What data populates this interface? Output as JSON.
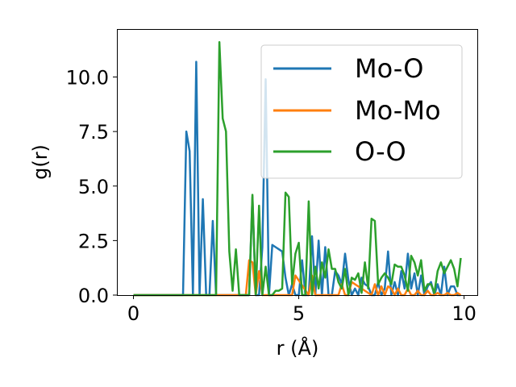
{
  "chart_data": {
    "type": "line",
    "title": "",
    "xlabel": "r (Å)",
    "ylabel": "g(r)",
    "xlim": [
      -0.5,
      10.4
    ],
    "ylim": [
      0,
      12.2
    ],
    "x_ticks": [
      0,
      5,
      10
    ],
    "x_tick_labels": [
      "0",
      "5",
      "10"
    ],
    "y_ticks": [
      0,
      2.5,
      5,
      7.5,
      10
    ],
    "y_tick_labels": [
      "0.0",
      "2.5",
      "5.0",
      "7.5",
      "10.0"
    ],
    "grid": false,
    "legend_position": "top-right",
    "series": [
      {
        "name": "Mo-O",
        "color": "#1f77b4",
        "x": [
          0,
          1.5,
          1.6,
          1.7,
          1.8,
          1.9,
          2.0,
          2.1,
          2.2,
          2.3,
          2.4,
          2.5,
          2.6,
          3.0,
          3.5,
          3.6,
          3.7,
          3.8,
          3.9,
          4.0,
          4.1,
          4.2,
          4.3,
          4.4,
          4.5,
          4.6,
          4.7,
          4.8,
          4.9,
          5.0,
          5.1,
          5.2,
          5.3,
          5.4,
          5.5,
          5.6,
          5.7,
          5.8,
          5.9,
          6.0,
          6.1,
          6.2,
          6.3,
          6.4,
          6.5,
          6.6,
          6.7,
          6.8,
          6.9,
          7.0,
          7.1,
          7.2,
          7.3,
          7.4,
          7.5,
          7.6,
          7.7,
          7.8,
          7.9,
          8.0,
          8.1,
          8.2,
          8.3,
          8.4,
          8.5,
          8.6,
          8.7,
          8.8,
          8.9,
          9.0,
          9.1,
          9.2,
          9.3,
          9.4,
          9.5,
          9.6,
          9.7,
          9.8,
          9.9
        ],
        "values": [
          0,
          0,
          7.5,
          6.6,
          0,
          10.7,
          0,
          4.4,
          0,
          0,
          3.4,
          0,
          0,
          0,
          0,
          4.5,
          0,
          0,
          2.2,
          9.9,
          0,
          2.3,
          2.2,
          2.1,
          2.0,
          0.8,
          0,
          0.5,
          0,
          0,
          1.6,
          0,
          0,
          2.7,
          0,
          2.5,
          0,
          2.2,
          0,
          0,
          1.1,
          0.9,
          0.5,
          1.9,
          0.7,
          0,
          0.3,
          0,
          0.8,
          0.5,
          0.4,
          0,
          0,
          0.6,
          0,
          0.3,
          2.0,
          0,
          0.6,
          0,
          1.1,
          0.3,
          1.9,
          0.3,
          1.0,
          0,
          0.9,
          0,
          0.4,
          0.6,
          0,
          0.5,
          0,
          1.3,
          0,
          0.4,
          0.4,
          0,
          0
        ]
      },
      {
        "name": "Mo-Mo",
        "color": "#ff7f0e",
        "x": [
          0,
          3.4,
          3.5,
          3.6,
          3.7,
          3.8,
          3.9,
          4.0,
          4.8,
          4.9,
          5.3,
          5.4,
          5.5,
          6.2,
          6.3,
          6.4,
          6.5,
          6.6,
          7.2,
          7.3,
          7.4,
          7.5,
          7.6,
          7.7,
          7.8,
          7.9,
          8.0,
          8.1,
          8.2,
          8.3,
          8.4,
          8.5,
          8.6,
          8.7,
          8.8,
          8.9,
          9.0,
          9.1,
          9.2,
          9.3,
          9.4,
          9.5,
          9.6,
          9.7,
          9.8,
          9.9
        ],
        "values": [
          0,
          0,
          1.6,
          1.5,
          0,
          1.1,
          0,
          0,
          0,
          0.9,
          0,
          0.9,
          0,
          0,
          0.5,
          0,
          0,
          0.6,
          0,
          0.5,
          0,
          0.4,
          0,
          0.4,
          0.3,
          0,
          0.3,
          0,
          0,
          0.3,
          0,
          0,
          0.2,
          0,
          0,
          0.2,
          0,
          0,
          0.1,
          0,
          0,
          0.1,
          0,
          0,
          0.1,
          0
        ]
      },
      {
        "name": "O-O",
        "color": "#2ca02c",
        "x": [
          0,
          2.4,
          2.5,
          2.6,
          2.7,
          2.8,
          2.9,
          3.0,
          3.1,
          3.2,
          3.3,
          3.4,
          3.5,
          3.6,
          3.7,
          3.8,
          3.9,
          4.0,
          4.1,
          4.2,
          4.3,
          4.4,
          4.5,
          4.6,
          4.7,
          4.8,
          4.9,
          5.0,
          5.1,
          5.2,
          5.3,
          5.4,
          5.5,
          5.6,
          5.7,
          5.8,
          5.9,
          6.0,
          6.1,
          6.2,
          6.3,
          6.4,
          6.5,
          6.6,
          6.7,
          6.8,
          6.9,
          7.0,
          7.1,
          7.2,
          7.3,
          7.4,
          7.5,
          7.6,
          7.7,
          7.8,
          7.9,
          8.0,
          8.1,
          8.2,
          8.3,
          8.4,
          8.5,
          8.6,
          8.7,
          8.8,
          8.9,
          9.0,
          9.1,
          9.2,
          9.3,
          9.4,
          9.5,
          9.6,
          9.7,
          9.8,
          9.9
        ],
        "values": [
          0,
          0,
          0,
          11.6,
          8.1,
          7.5,
          2.0,
          0.2,
          2.1,
          0,
          0,
          0,
          0,
          4.6,
          0,
          4.1,
          0,
          1.3,
          0,
          0,
          0.2,
          0.2,
          0.3,
          4.7,
          4.5,
          0.5,
          1.9,
          2.4,
          0,
          0,
          4.3,
          0,
          1.3,
          0.3,
          1.5,
          0.8,
          2.1,
          1.2,
          1.2,
          0.6,
          0.3,
          1.2,
          0,
          0.8,
          0.7,
          1.0,
          0.1,
          1.5,
          0.3,
          3.5,
          3.4,
          0.5,
          0.8,
          1.0,
          0.8,
          0.5,
          1.4,
          1.3,
          1.3,
          0.9,
          0.2,
          1.8,
          1.5,
          0.9,
          1.6,
          0.2,
          0.5,
          0.5,
          0.1,
          1.1,
          1.5,
          1.0,
          1.3,
          1.6,
          1.2,
          0.4,
          1.7
        ]
      }
    ]
  }
}
